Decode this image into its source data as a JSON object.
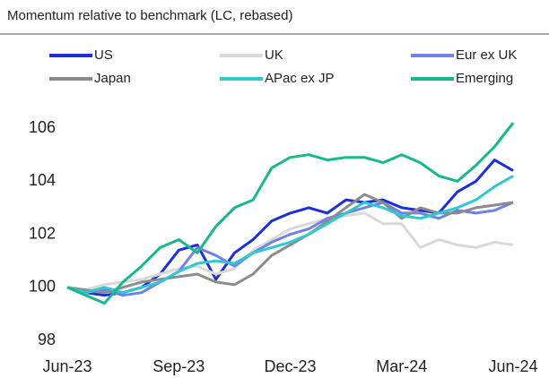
{
  "chart_data": {
    "type": "line",
    "title": "Momentum relative to benchmark (LC, rebased)",
    "categories": [
      "Jun-23",
      null,
      null,
      null,
      null,
      null,
      "Sep-23",
      null,
      null,
      null,
      null,
      null,
      "Dec-23",
      null,
      null,
      null,
      null,
      null,
      "Mar-24",
      null,
      null,
      null,
      null,
      null,
      "Jun-24"
    ],
    "series": [
      {
        "name": "US",
        "color": "#1a2fdc",
        "values": [
          100,
          99.8,
          99.7,
          99.8,
          100,
          100.5,
          101.4,
          101.6,
          100.3,
          101.3,
          101.8,
          102.5,
          102.8,
          103,
          102.8,
          103.3,
          103.2,
          103.3,
          103,
          102.9,
          102.8,
          103.6,
          104,
          104.8,
          104.4
        ]
      },
      {
        "name": "UK",
        "color": "#d9d9d9",
        "values": [
          100,
          99.9,
          100.1,
          100.2,
          100.3,
          100.5,
          100.7,
          100.8,
          100.5,
          100.7,
          101.4,
          101.8,
          102.2,
          102.4,
          102.6,
          102.7,
          102.8,
          102.4,
          102.4,
          101.5,
          101.8,
          101.6,
          101.5,
          101.7,
          101.6
        ]
      },
      {
        "name": "Eur ex UK",
        "color": "#6f82e8",
        "values": [
          100,
          99.8,
          99.9,
          99.7,
          99.8,
          100.2,
          100.6,
          101.5,
          101.2,
          100.8,
          101.3,
          101.7,
          102,
          102.2,
          102.6,
          102.8,
          103,
          103.2,
          102.8,
          102.8,
          102.6,
          102.9,
          102.8,
          102.9,
          103.2
        ]
      },
      {
        "name": "Japan",
        "color": "#8c8c8c",
        "values": [
          100,
          99.9,
          99.8,
          100,
          100.2,
          100.3,
          100.4,
          100.5,
          100.2,
          100.1,
          100.5,
          101.2,
          101.6,
          102,
          102.5,
          103,
          103.5,
          103.2,
          102.6,
          103,
          102.8,
          102.8,
          103,
          103.1,
          103.2
        ]
      },
      {
        "name": "APac ex JP",
        "color": "#2ec9d0",
        "values": [
          100,
          99.8,
          100,
          99.8,
          100,
          100.2,
          100.6,
          100.9,
          101,
          100.9,
          101.3,
          101.5,
          101.7,
          102,
          102.4,
          102.8,
          103.2,
          103,
          102.7,
          102.6,
          102.8,
          103,
          103.3,
          103.8,
          104.2
        ]
      },
      {
        "name": "Emerging",
        "color": "#17b88a",
        "values": [
          100,
          99.7,
          99.4,
          100.2,
          100.8,
          101.5,
          101.8,
          101.3,
          102.3,
          103,
          103.3,
          104.5,
          104.9,
          105,
          104.8,
          104.9,
          104.9,
          104.7,
          105,
          104.7,
          104.2,
          104,
          104.6,
          105.3,
          106.2
        ]
      }
    ],
    "ylim": [
      98,
      107
    ],
    "yticks": [
      98,
      100,
      102,
      104,
      106
    ]
  }
}
